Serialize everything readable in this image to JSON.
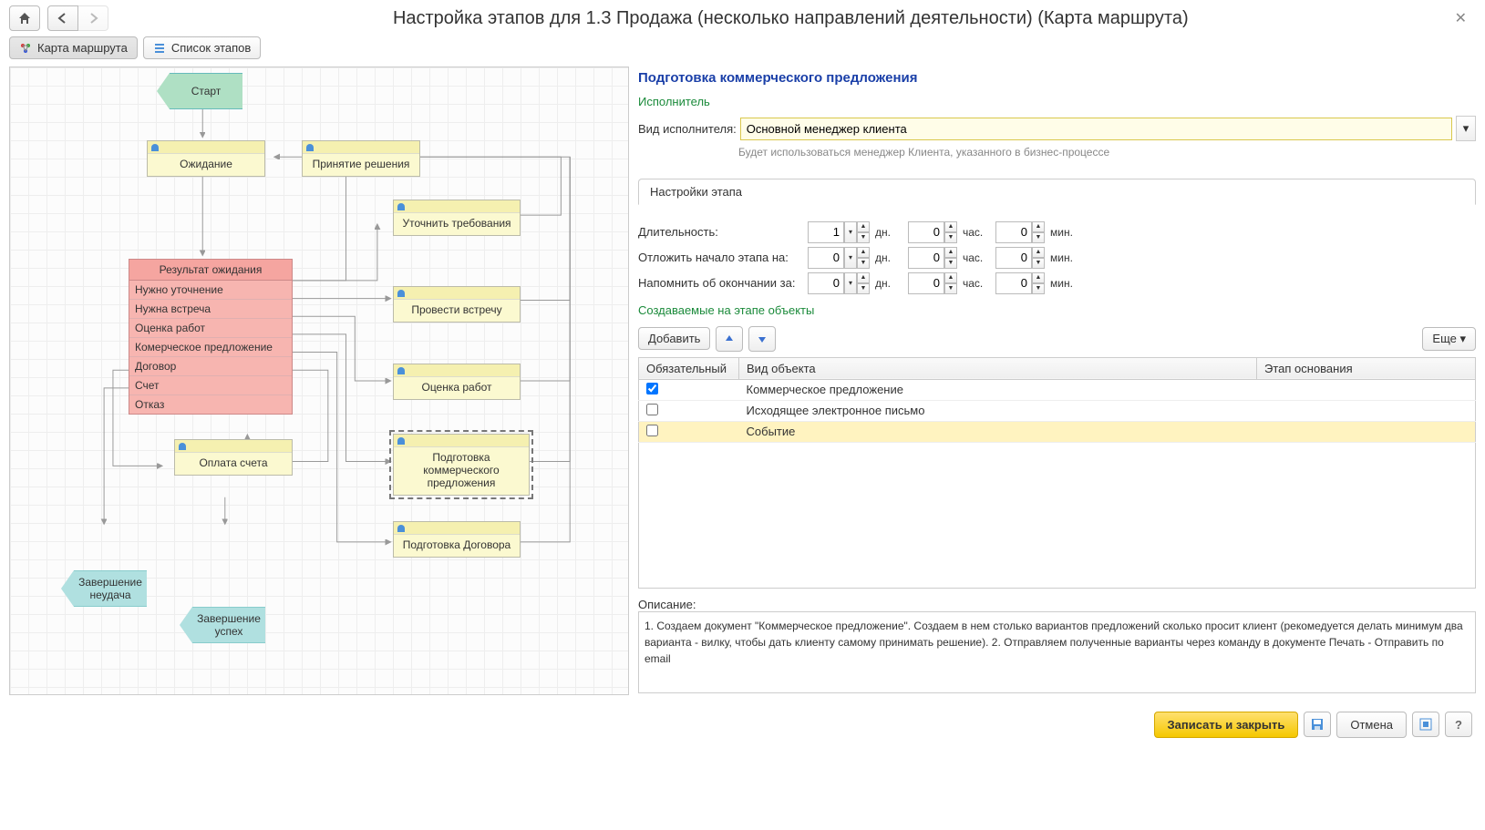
{
  "title": "Настройка этапов для 1.3 Продажа (несколько направлений деятельности) (Карта маршрута)",
  "toolbar": {
    "tab_route": "Карта маршрута",
    "tab_stages": "Список этапов"
  },
  "flowchart": {
    "start": "Старт",
    "nodes": {
      "wait": "Ожидание",
      "decision": "Принятие решения",
      "clarify": "Уточнить требования",
      "meeting": "Провести встречу",
      "estimate": "Оценка работ",
      "payment": "Оплата счета",
      "commercial": "Подготовка коммерческого предложения",
      "contract": "Подготовка Договора"
    },
    "switch": {
      "title": "Результат ожидания",
      "options": [
        "Нужно уточнение",
        "Нужна встреча",
        "Оценка работ",
        "Комерческое предложение",
        "Договор",
        "Счет",
        "Отказ"
      ]
    },
    "end_fail": "Завершение неудача",
    "end_success": "Завершение успех"
  },
  "right": {
    "title": "Подготовка коммерческого предложения",
    "executor_section": "Исполнитель",
    "executor_label": "Вид исполнителя:",
    "executor_value": "Основной менеджер клиента",
    "executor_hint": "Будет использоваться менеджер Клиента, указанного в бизнес-процессе",
    "settings_tab": "Настройки этапа",
    "duration_label": "Длительность:",
    "delay_label": "Отложить начало этапа на:",
    "remind_label": "Напомнить об окончании за:",
    "units": {
      "d": "дн.",
      "h": "час.",
      "m": "мин."
    },
    "duration": {
      "d": "1",
      "h": "0",
      "m": "0"
    },
    "delay": {
      "d": "0",
      "h": "0",
      "m": "0"
    },
    "remind": {
      "d": "0",
      "h": "0",
      "m": "0"
    },
    "objects_section": "Создаваемые на этапе объекты",
    "add_btn": "Добавить",
    "more_btn": "Еще",
    "columns": {
      "req": "Обязательный",
      "type": "Вид объекта",
      "stage": "Этап основания"
    },
    "rows": [
      {
        "req": true,
        "type": "Коммерческое предложение",
        "stage": "",
        "sel": false
      },
      {
        "req": false,
        "type": "Исходящее электронное письмо",
        "stage": "",
        "sel": false
      },
      {
        "req": false,
        "type": "Событие",
        "stage": "",
        "sel": true
      }
    ],
    "desc_label": "Описание:",
    "desc": "1. Создаем документ \"Коммерческое предложение\". Создаем в нем столько вариантов предложений сколько просит клиент (рекомедуется делать минимум два варианта - вилку, чтобы дать клиенту самому принимать решение).\n2. Отправляем  полученные варианты через команду в документе Печать - Отправить по email"
  },
  "footer": {
    "save": "Записать и закрыть",
    "cancel": "Отмена"
  },
  "colors": {
    "start": "#afe0c4",
    "end": "#b0e0e0",
    "task": "#fbf9d0",
    "switch_header": "#f5a5a0",
    "switch_row": "#f7b5b0",
    "accent": "#f5c800"
  }
}
